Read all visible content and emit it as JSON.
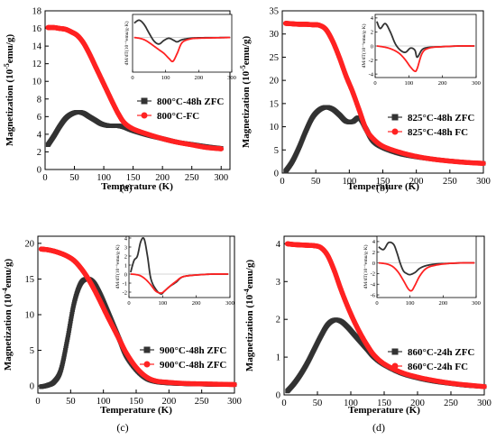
{
  "colors": {
    "zfc": "#333333",
    "fc": "#ff2222",
    "axis": "#000000"
  },
  "chart_data": [
    {
      "type": "scatter",
      "caption": "(a)",
      "xlabel": "Temperature (K)",
      "ylabel": "Magnetization (10",
      "ylabel_sup": "-5",
      "ylabel_tail": "emu/g)",
      "xlim": [
        0,
        315
      ],
      "ylim": [
        0,
        18
      ],
      "xticks": [
        0,
        50,
        100,
        150,
        200,
        250,
        300
      ],
      "yticks": [
        0,
        2,
        4,
        6,
        8,
        10,
        12,
        14,
        16,
        18
      ],
      "legend": {
        "placement": "center-right"
      },
      "series": [
        {
          "name": "800°C-48h ZFC",
          "color": "#333333",
          "marker": "square",
          "x": [
            5,
            15,
            25,
            35,
            45,
            55,
            65,
            75,
            85,
            95,
            105,
            115,
            125,
            135,
            150,
            175,
            200,
            225,
            250,
            275,
            300
          ],
          "y": [
            2.8,
            3.8,
            4.9,
            5.8,
            6.3,
            6.5,
            6.4,
            6.0,
            5.6,
            5.2,
            5.0,
            4.95,
            4.95,
            4.8,
            4.4,
            3.9,
            3.5,
            3.1,
            2.85,
            2.6,
            2.4
          ]
        },
        {
          "name": "800°C-FC",
          "color": "#ff2222",
          "marker": "circle",
          "x": [
            5,
            15,
            25,
            35,
            45,
            55,
            65,
            75,
            85,
            95,
            105,
            115,
            125,
            135,
            150,
            175,
            200,
            225,
            250,
            275,
            300
          ],
          "y": [
            16.1,
            16.1,
            16.0,
            15.9,
            15.6,
            15.2,
            14.4,
            13.2,
            11.8,
            10.4,
            9.0,
            7.6,
            6.3,
            5.3,
            4.6,
            4.0,
            3.5,
            3.1,
            2.8,
            2.5,
            2.35
          ]
        }
      ],
      "inset": {
        "ylabel": "dM/dT(10⁻⁶emu/g·K)",
        "xlim": [
          0,
          300
        ],
        "ylim": [
          -2.4,
          1.6
        ],
        "xticks": [
          0,
          100,
          200,
          300
        ],
        "yticks": [],
        "series": [
          {
            "name": "ZFC",
            "color": "#333333",
            "x": [
              5,
              20,
              35,
              50,
              65,
              80,
              95,
              110,
              125,
              135,
              150,
              175,
              200,
              250,
              295
            ],
            "y": [
              1.0,
              1.2,
              0.9,
              0.3,
              -0.25,
              -0.45,
              -0.2,
              -0.05,
              -0.2,
              -0.3,
              -0.15,
              -0.05,
              -0.02,
              -0.01,
              0.0
            ]
          },
          {
            "name": "FC",
            "color": "#ff2222",
            "x": [
              5,
              20,
              35,
              50,
              65,
              80,
              95,
              110,
              122,
              135,
              150,
              175,
              200,
              250,
              295
            ],
            "y": [
              0.0,
              -0.05,
              -0.15,
              -0.35,
              -0.6,
              -0.85,
              -1.1,
              -1.45,
              -1.65,
              -1.1,
              -0.35,
              -0.1,
              -0.05,
              -0.02,
              0.0
            ]
          }
        ]
      }
    },
    {
      "type": "scatter",
      "caption": "(b)",
      "xlabel": "Temperature (K)",
      "ylabel": "Magnetization (10",
      "ylabel_sup": "-5",
      "ylabel_tail": "emu/g)",
      "xlim": [
        0,
        300
      ],
      "ylim": [
        0,
        35
      ],
      "xticks": [
        0,
        50,
        100,
        150,
        200,
        250,
        300
      ],
      "yticks": [
        0,
        5,
        10,
        15,
        20,
        25,
        30,
        35
      ],
      "legend": {
        "placement": "center-right"
      },
      "series": [
        {
          "name": "825°C-48h ZFC",
          "color": "#333333",
          "marker": "square",
          "x": [
            5,
            15,
            25,
            35,
            45,
            55,
            65,
            75,
            85,
            95,
            105,
            115,
            125,
            135,
            150,
            175,
            200,
            225,
            250,
            275,
            300
          ],
          "y": [
            0.4,
            2.5,
            5.5,
            9.0,
            12.0,
            13.6,
            14.2,
            13.8,
            12.6,
            11.2,
            11.1,
            11.9,
            9.5,
            7.0,
            5.5,
            4.2,
            3.5,
            3.0,
            2.6,
            2.3,
            2.1
          ]
        },
        {
          "name": "825°C-48h FC",
          "color": "#ff2222",
          "marker": "circle",
          "x": [
            5,
            15,
            25,
            35,
            45,
            55,
            65,
            75,
            85,
            95,
            105,
            115,
            125,
            135,
            150,
            175,
            200,
            225,
            250,
            275,
            300
          ],
          "y": [
            32.3,
            32.2,
            32.1,
            32.1,
            32.0,
            31.9,
            31.0,
            28.5,
            25.0,
            21.0,
            17.5,
            13.5,
            9.5,
            7.5,
            5.8,
            4.5,
            3.6,
            3.0,
            2.6,
            2.3,
            2.1
          ]
        }
      ],
      "inset": {
        "ylabel": "dM/dT(10⁻⁶emu/g·K)",
        "xlim": [
          0,
          300
        ],
        "ylim": [
          -4.5,
          4.5
        ],
        "xticks": [
          0,
          100,
          200,
          300
        ],
        "yticks": [
          4,
          2,
          0,
          -2,
          -4
        ],
        "series": [
          {
            "name": "ZFC",
            "color": "#333333",
            "x": [
              5,
              15,
              30,
              45,
              60,
              75,
              90,
              105,
              118,
              125,
              140,
              160,
              200,
              250,
              295
            ],
            "y": [
              3.5,
              2.5,
              3.2,
              2.0,
              0.3,
              -0.6,
              -0.9,
              -0.3,
              -0.6,
              -1.6,
              -0.5,
              -0.2,
              -0.1,
              0.0,
              0.0
            ]
          },
          {
            "name": "FC",
            "color": "#ff2222",
            "x": [
              5,
              20,
              40,
              60,
              75,
              90,
              105,
              118,
              125,
              140,
              160,
              200,
              250,
              295
            ],
            "y": [
              0.0,
              -0.1,
              -0.3,
              -0.7,
              -1.2,
              -2.0,
              -3.0,
              -3.6,
              -3.2,
              -1.0,
              -0.3,
              -0.1,
              0.0,
              0.0
            ]
          }
        ]
      }
    },
    {
      "type": "scatter",
      "caption": "(c)",
      "xlabel": "Temperature (K)",
      "ylabel": "Magnetization (10",
      "ylabel_sup": "-4",
      "ylabel_tail": "emu/g)",
      "xlim": [
        0,
        300
      ],
      "ylim": [
        -1,
        21
      ],
      "xticks": [
        0,
        50,
        100,
        150,
        200,
        250,
        300
      ],
      "yticks": [
        0,
        5,
        10,
        15,
        20
      ],
      "legend": {
        "placement": "center-right"
      },
      "series": [
        {
          "name": "900°C-48h ZFC",
          "color": "#333333",
          "marker": "square",
          "x": [
            5,
            15,
            25,
            35,
            45,
            55,
            65,
            75,
            85,
            95,
            105,
            115,
            125,
            135,
            150,
            165,
            180,
            200,
            225,
            250,
            275,
            300
          ],
          "y": [
            -0.1,
            0.1,
            0.6,
            2.2,
            6.5,
            11.5,
            14.3,
            15.0,
            14.5,
            12.9,
            10.8,
            8.6,
            6.4,
            4.2,
            2.3,
            1.1,
            0.6,
            0.4,
            0.3,
            0.25,
            0.2,
            0.2
          ]
        },
        {
          "name": "900°C-48h ZFC",
          "color": "#ff2222",
          "marker": "circle",
          "x": [
            5,
            15,
            25,
            35,
            45,
            55,
            65,
            75,
            85,
            95,
            105,
            115,
            125,
            135,
            150,
            165,
            180,
            200,
            225,
            250,
            275,
            300
          ],
          "y": [
            19.2,
            19.1,
            18.9,
            18.6,
            18.2,
            17.6,
            16.6,
            15.3,
            13.7,
            11.9,
            10.0,
            8.2,
            6.4,
            4.6,
            2.6,
            1.3,
            0.7,
            0.5,
            0.35,
            0.3,
            0.25,
            0.2
          ]
        }
      ],
      "inset": {
        "ylabel": "dM/dT(10⁻⁶emu/g·K)",
        "xlim": [
          0,
          300
        ],
        "ylim": [
          -2.6,
          4.2
        ],
        "xticks": [
          0,
          100,
          200,
          300
        ],
        "yticks": [
          4,
          3,
          2,
          1,
          0,
          -1,
          -2
        ],
        "series": [
          {
            "name": "ZFC",
            "color": "#333333",
            "x": [
              5,
              15,
              25,
              35,
              45,
              55,
              65,
              80,
              95,
              105,
              120,
              140,
              160,
              200,
              250,
              295
            ],
            "y": [
              0.2,
              1.5,
              2.0,
              3.6,
              3.9,
              2.0,
              -0.5,
              -1.7,
              -2.2,
              -1.9,
              -1.4,
              -0.9,
              -0.3,
              -0.1,
              0.0,
              0.0
            ]
          },
          {
            "name": "FC",
            "color": "#ff2222",
            "x": [
              5,
              20,
              35,
              50,
              65,
              80,
              95,
              105,
              120,
              140,
              160,
              200,
              250,
              295
            ],
            "y": [
              0.0,
              -0.05,
              -0.2,
              -0.6,
              -1.2,
              -1.9,
              -2.1,
              -1.9,
              -1.4,
              -0.8,
              -0.3,
              -0.1,
              0.0,
              0.0
            ]
          }
        ]
      }
    },
    {
      "type": "scatter",
      "caption": "(d)",
      "xlabel": "Temperature (K)",
      "ylabel": "Magnetization (10",
      "ylabel_sup": "-4",
      "ylabel_tail": "emu/g)",
      "xlim": [
        0,
        300
      ],
      "ylim": [
        0,
        4.2
      ],
      "xticks": [
        0,
        50,
        100,
        150,
        200,
        250,
        300
      ],
      "yticks": [
        0,
        1,
        2,
        3,
        4
      ],
      "legend": {
        "placement": "center-right"
      },
      "series": [
        {
          "name": "860°C-24h ZFC",
          "color": "#333333",
          "marker": "square",
          "x": [
            5,
            15,
            25,
            35,
            45,
            55,
            65,
            75,
            85,
            95,
            105,
            115,
            125,
            135,
            150,
            175,
            200,
            225,
            250,
            275,
            300
          ],
          "y": [
            0.1,
            0.3,
            0.55,
            0.85,
            1.2,
            1.55,
            1.85,
            1.98,
            1.95,
            1.8,
            1.6,
            1.4,
            1.2,
            1.0,
            0.8,
            0.58,
            0.45,
            0.36,
            0.3,
            0.25,
            0.22
          ]
        },
        {
          "name": "860°C-24h FC",
          "color": "#ff2222",
          "marker": "circle",
          "x": [
            5,
            15,
            25,
            35,
            45,
            55,
            65,
            75,
            85,
            95,
            105,
            115,
            125,
            135,
            150,
            175,
            200,
            225,
            250,
            275,
            300
          ],
          "y": [
            4.0,
            3.98,
            3.97,
            3.96,
            3.95,
            3.9,
            3.7,
            3.3,
            2.8,
            2.35,
            1.95,
            1.6,
            1.3,
            1.05,
            0.82,
            0.6,
            0.47,
            0.38,
            0.31,
            0.26,
            0.22
          ]
        }
      ],
      "inset": {
        "ylabel": "dM/dT(10⁻⁶emu/g·K)",
        "xlim": [
          0,
          300
        ],
        "ylim": [
          -6.5,
          5
        ],
        "xticks": [
          0,
          100,
          200,
          300
        ],
        "yticks": [
          4,
          2,
          0,
          -2,
          -4,
          -6
        ],
        "series": [
          {
            "name": "ZFC",
            "color": "#333333",
            "x": [
              5,
              20,
              35,
              50,
              60,
              70,
              80,
              90,
              100,
              115,
              130,
              150,
              180,
              220,
              260,
              295
            ],
            "y": [
              3.0,
              2.5,
              3.8,
              3.5,
              2.0,
              0.0,
              -1.5,
              -2.0,
              -2.2,
              -1.8,
              -1.0,
              -0.5,
              -0.2,
              -0.1,
              0.0,
              0.0
            ]
          },
          {
            "name": "FC",
            "color": "#ff2222",
            "x": [
              5,
              20,
              35,
              50,
              65,
              80,
              95,
              105,
              115,
              130,
              150,
              180,
              220,
              260,
              295
            ],
            "y": [
              0.0,
              -0.1,
              -0.3,
              -0.8,
              -1.8,
              -3.3,
              -4.9,
              -5.2,
              -4.2,
              -2.4,
              -1.0,
              -0.4,
              -0.1,
              0.0,
              0.0
            ]
          }
        ]
      }
    }
  ]
}
